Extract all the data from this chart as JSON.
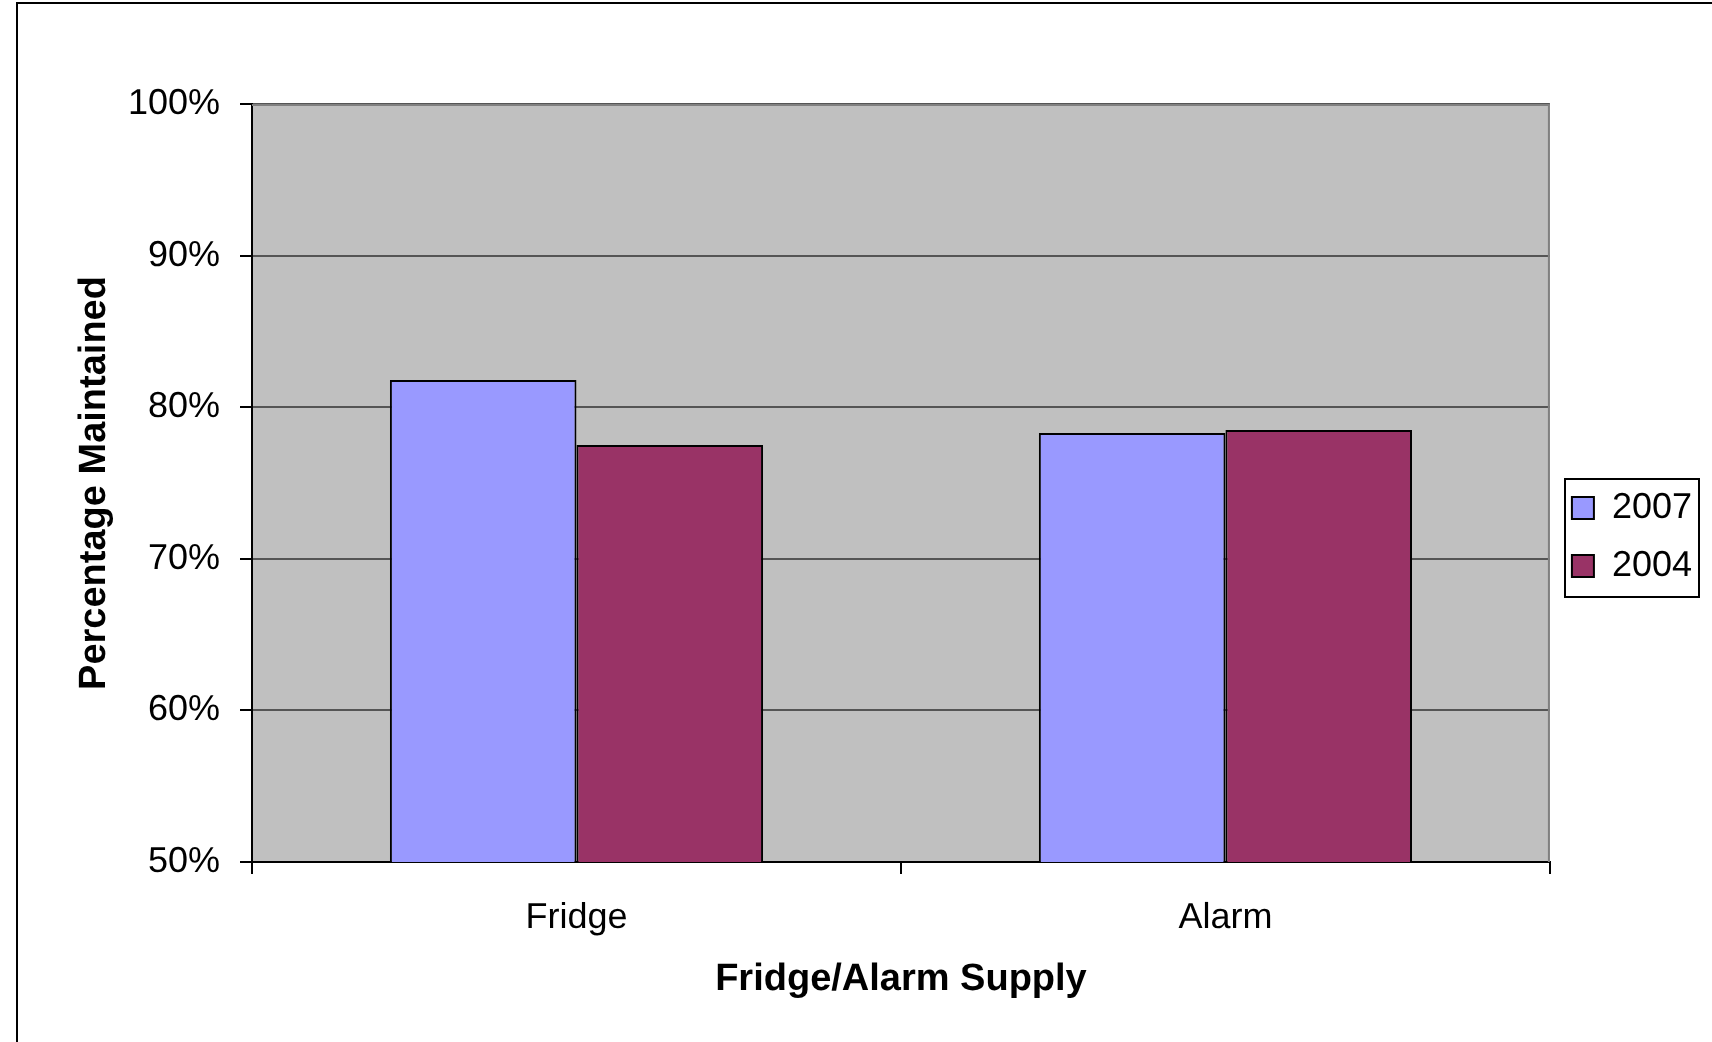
{
  "chart_data": {
    "type": "bar",
    "xlabel": "Fridge/Alarm Supply",
    "ylabel": "Percentage Maintained",
    "categories": [
      "Fridge",
      "Alarm"
    ],
    "series": [
      {
        "name": "2007",
        "color": "#9999ff",
        "values": [
          81.8,
          78.3
        ]
      },
      {
        "name": "2004",
        "color": "#993366",
        "values": [
          77.5,
          78.5
        ]
      }
    ],
    "ylim": [
      50,
      100
    ],
    "yticks": [
      {
        "value": 50,
        "label": "50%"
      },
      {
        "value": 60,
        "label": "60%"
      },
      {
        "value": 70,
        "label": "70%"
      },
      {
        "value": 80,
        "label": "80%"
      },
      {
        "value": 90,
        "label": "90%"
      },
      {
        "value": 100,
        "label": "100%"
      }
    ],
    "grid": "y",
    "legend": "right"
  }
}
